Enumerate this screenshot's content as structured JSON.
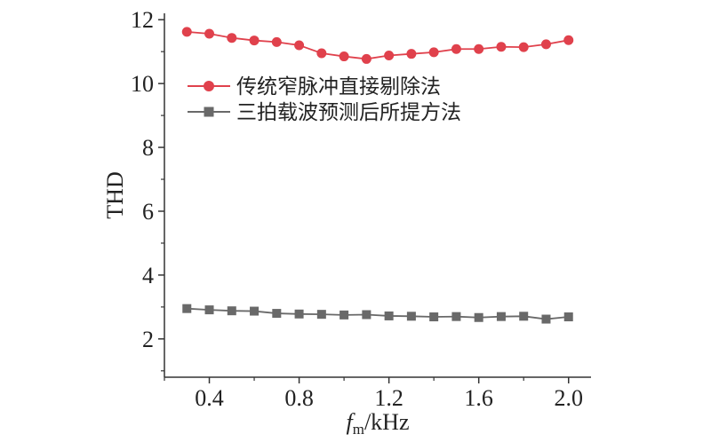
{
  "chart_data": {
    "type": "line",
    "xlabel_main": "f",
    "xlabel_sub": "m",
    "xlabel_unit": "/kHz",
    "ylabel": "THD",
    "xlim": [
      0.2,
      2.1
    ],
    "ylim": [
      0.8,
      12.2
    ],
    "xticks": [
      0.4,
      0.8,
      1.2,
      1.6,
      2.0
    ],
    "xtick_labels": [
      "0.4",
      "0.8",
      "1.2",
      "1.6",
      "2.0"
    ],
    "yticks": [
      2,
      4,
      6,
      8,
      10,
      12
    ],
    "ytick_labels": [
      "2",
      "4",
      "6",
      "8",
      "10",
      "12"
    ],
    "legend_position": "upper-right",
    "x": [
      0.3,
      0.4,
      0.5,
      0.6,
      0.7,
      0.8,
      0.9,
      1.0,
      1.1,
      1.2,
      1.3,
      1.4,
      1.5,
      1.6,
      1.7,
      1.8,
      1.9,
      2.0
    ],
    "series": [
      {
        "name": "传统窄脉冲直接剔除法",
        "marker": "circle",
        "color": "#e0414c",
        "values": [
          11.62,
          11.56,
          11.43,
          11.35,
          11.3,
          11.2,
          10.95,
          10.85,
          10.77,
          10.88,
          10.93,
          10.98,
          11.08,
          11.08,
          11.15,
          11.14,
          11.23,
          11.36
        ]
      },
      {
        "name": "三拍载波预测后所提方法",
        "marker": "square",
        "color": "#696969",
        "values": [
          2.95,
          2.91,
          2.88,
          2.87,
          2.8,
          2.78,
          2.77,
          2.75,
          2.76,
          2.72,
          2.71,
          2.69,
          2.7,
          2.67,
          2.7,
          2.71,
          2.62,
          2.69
        ]
      }
    ]
  }
}
